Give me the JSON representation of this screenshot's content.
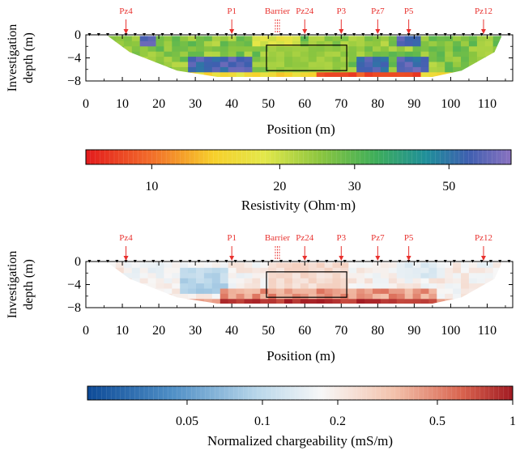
{
  "chart_data": [
    {
      "type": "heatmap",
      "xlabel": "Position (m)",
      "ylabel_lines": [
        "Investigation",
        "depth (m)"
      ],
      "x_range": [
        0,
        117
      ],
      "y_range": [
        -8,
        0
      ],
      "x_ticks": [
        0,
        10,
        20,
        30,
        40,
        50,
        60,
        70,
        80,
        90,
        100,
        110
      ],
      "y_ticks": [
        0,
        -4,
        -8
      ],
      "markers": [
        {
          "label": "Pz4",
          "x": 11
        },
        {
          "label": "P1",
          "x": 40
        },
        {
          "label": "Barrier",
          "x": 52.5
        },
        {
          "label": "Pz24",
          "x": 60
        },
        {
          "label": "P3",
          "x": 70
        },
        {
          "label": "Pz7",
          "x": 80
        },
        {
          "label": "P5",
          "x": 88.5
        },
        {
          "label": "Pz12",
          "x": 109
        }
      ],
      "box": {
        "x": [
          49.5,
          71.5
        ],
        "y": [
          -1.8,
          -6.2
        ]
      },
      "colorbar": {
        "label": "Resistivity (Ohm·m)",
        "scale": "log",
        "range": [
          7,
          70
        ],
        "ticks": [
          10,
          20,
          30,
          50
        ],
        "colormap": "spectral"
      }
    },
    {
      "type": "heatmap",
      "xlabel": "Position (m)",
      "ylabel_lines": [
        "Investigation",
        "depth (m)"
      ],
      "x_range": [
        0,
        117
      ],
      "y_range": [
        -8,
        0
      ],
      "x_ticks": [
        0,
        10,
        20,
        30,
        40,
        50,
        60,
        70,
        80,
        90,
        100,
        110
      ],
      "y_ticks": [
        0,
        -4,
        -8
      ],
      "markers": [
        {
          "label": "Pz4",
          "x": 11
        },
        {
          "label": "P1",
          "x": 40
        },
        {
          "label": "Barrier",
          "x": 52.5
        },
        {
          "label": "Pz24",
          "x": 60
        },
        {
          "label": "P3",
          "x": 70
        },
        {
          "label": "Pz7",
          "x": 80
        },
        {
          "label": "P5",
          "x": 88.5
        },
        {
          "label": "Pz12",
          "x": 109
        }
      ],
      "box": {
        "x": [
          49.5,
          71.5
        ],
        "y": [
          -1.8,
          -6.2
        ]
      },
      "colorbar": {
        "label": "Normalized chargeability (mS/m)",
        "scale": "log",
        "range": [
          0.02,
          1
        ],
        "ticks": [
          0.05,
          0.1,
          0.2,
          0.5,
          1
        ],
        "colormap": "blue-white-red"
      }
    }
  ]
}
